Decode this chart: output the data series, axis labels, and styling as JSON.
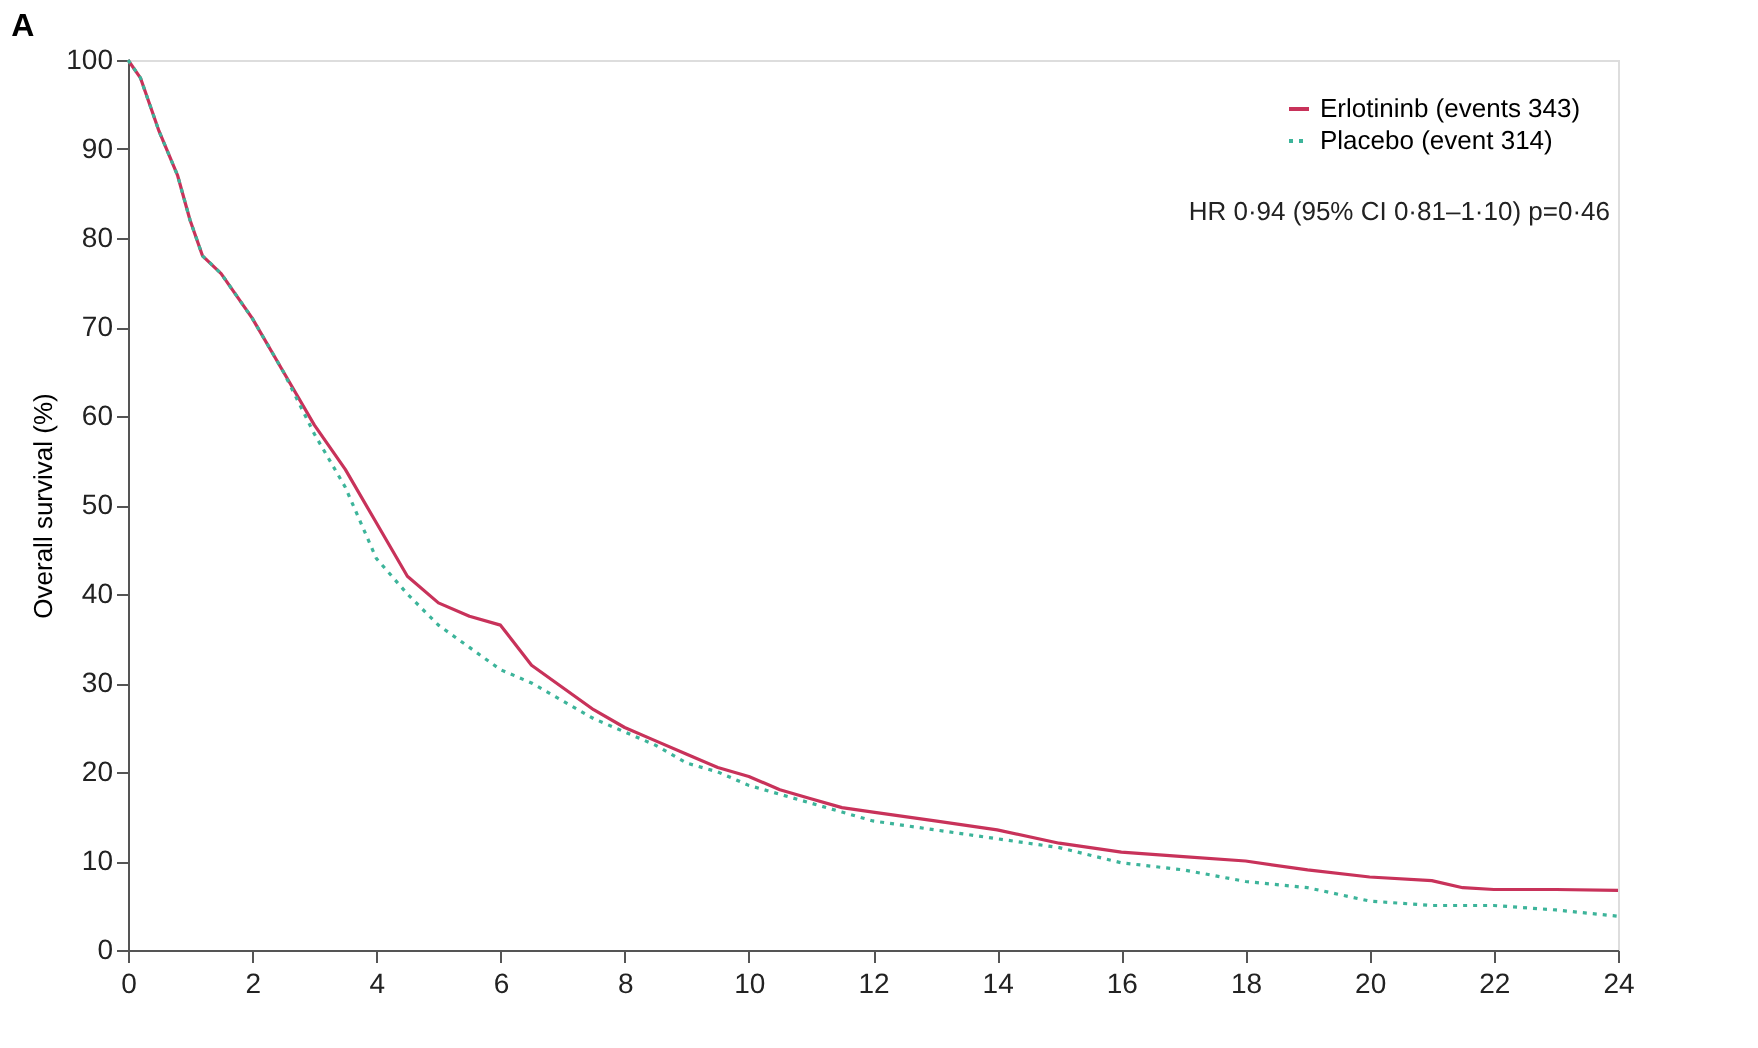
{
  "chart_data": {
    "type": "line",
    "title": "A",
    "ylabel": "Overall survival (%)",
    "xlim": [
      0,
      24
    ],
    "xticks": [
      0,
      2,
      4,
      6,
      8,
      10,
      12,
      14,
      16,
      18,
      20,
      22,
      24
    ],
    "ylim": [
      0,
      100
    ],
    "yticks": [
      0,
      10,
      20,
      30,
      40,
      50,
      60,
      70,
      80,
      90,
      100
    ],
    "grid": false,
    "legend": "top right",
    "marker": "none",
    "annotations": [
      "HR 0·94 (95% CI 0·81–1·10) p=0·46"
    ],
    "series": [
      {
        "name": "Erlotininb (events 343)",
        "color": "#c8325a",
        "line_style": "solid",
        "x": [
          0,
          0.2,
          0.5,
          0.8,
          1,
          1.2,
          1.5,
          2,
          2.5,
          3,
          3.5,
          4,
          4.5,
          5,
          5.5,
          6,
          6.5,
          7,
          7.5,
          8,
          8.5,
          9,
          9.5,
          10,
          10.5,
          11,
          11.5,
          12,
          13,
          14,
          15,
          16,
          17,
          18,
          19,
          20,
          21,
          21.5,
          22,
          23,
          24
        ],
        "values": [
          100,
          98,
          92,
          87,
          82,
          78,
          76,
          71,
          65,
          59,
          54,
          48,
          42,
          39,
          37.5,
          36.5,
          32,
          29.5,
          27,
          25,
          23.5,
          22,
          20.5,
          19.5,
          18,
          17,
          16,
          15.5,
          14.5,
          13.5,
          12,
          11,
          10.5,
          10,
          9,
          8.2,
          7.8,
          7,
          6.8,
          6.8,
          6.7
        ]
      },
      {
        "name": "Placebo (event 314)",
        "color": "#3cb49a",
        "line_style": "dotted",
        "x": [
          0,
          0.2,
          0.5,
          0.8,
          1,
          1.2,
          1.5,
          2,
          2.5,
          3,
          3.5,
          4,
          4.5,
          5,
          5.5,
          6,
          6.5,
          7,
          7.5,
          8,
          8.5,
          9,
          9.5,
          10,
          10.5,
          11,
          11.5,
          12,
          13,
          14,
          15,
          16,
          17,
          18,
          19,
          20,
          21,
          22,
          23,
          24
        ],
        "values": [
          100,
          98,
          92,
          87,
          82,
          78,
          76,
          71,
          65,
          58,
          52,
          44,
          40,
          36.5,
          34,
          31.5,
          30,
          28,
          26,
          24.5,
          23,
          21,
          20,
          18.5,
          17.5,
          16.5,
          15.5,
          14.5,
          13.5,
          12.5,
          11.5,
          9.8,
          9,
          7.7,
          7,
          5.5,
          5,
          5,
          4.5,
          3.8
        ]
      }
    ]
  }
}
